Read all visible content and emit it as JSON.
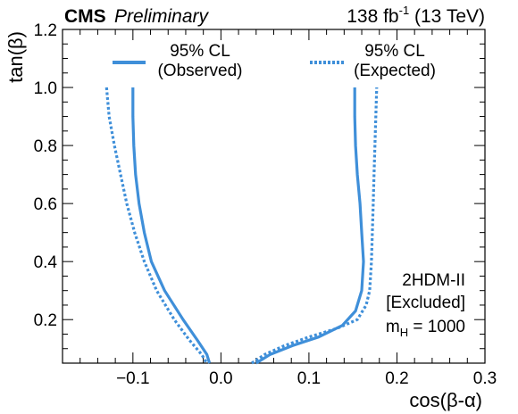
{
  "chart_data": {
    "type": "line",
    "header": {
      "experiment": "CMS",
      "status": "Preliminary",
      "lumi_value": "138 fb",
      "lumi_exp": "-1",
      "energy": " (13 TeV)"
    },
    "xlabel": "cos(β-α)",
    "ylabel": "tan(β)",
    "xlim": [
      -0.18,
      0.3
    ],
    "ylim": [
      0.05,
      1.2
    ],
    "xticks": [
      -0.1,
      0.0,
      0.1,
      0.2,
      0.3
    ],
    "xtick_labels": [
      "−0.1",
      "0.0",
      "0.1",
      "0.2",
      "0.3"
    ],
    "yticks": [
      0.2,
      0.4,
      0.6,
      0.8,
      1.0,
      1.2
    ],
    "ytick_labels": [
      "0.2",
      "0.4",
      "0.6",
      "0.8",
      "1.0",
      "1.2"
    ],
    "grid": false,
    "legend_position": "top",
    "line_color": "#3f8fd9",
    "legend": [
      {
        "line1": "95% CL",
        "line2": "(Observed)",
        "style": "solid"
      },
      {
        "line1": "95% CL",
        "line2": "(Expected)",
        "style": "dotted"
      }
    ],
    "annotation": {
      "line1": "2HDM-II",
      "line2": "[Excluded]",
      "line3_main": "m",
      "line3_sub": "H",
      "line3_rest": " = 1000"
    },
    "series": [
      {
        "name": "95% CL (Observed)",
        "style": "solid",
        "points": [
          [
            -0.1,
            1.0
          ],
          [
            -0.1,
            0.9
          ],
          [
            -0.099,
            0.8
          ],
          [
            -0.097,
            0.7
          ],
          [
            -0.093,
            0.6
          ],
          [
            -0.087,
            0.5
          ],
          [
            -0.079,
            0.4
          ],
          [
            -0.064,
            0.3
          ],
          [
            -0.043,
            0.2
          ],
          [
            -0.027,
            0.13
          ],
          [
            -0.016,
            0.08
          ],
          [
            -0.013,
            0.05
          ]
        ]
      },
      {
        "name": "95% CL (Observed)",
        "style": "solid",
        "points": [
          [
            0.04,
            0.05
          ],
          [
            0.056,
            0.08
          ],
          [
            0.081,
            0.11
          ],
          [
            0.111,
            0.14
          ],
          [
            0.138,
            0.18
          ],
          [
            0.153,
            0.23
          ],
          [
            0.16,
            0.3
          ],
          [
            0.162,
            0.4
          ],
          [
            0.16,
            0.5
          ],
          [
            0.158,
            0.6
          ],
          [
            0.155,
            0.7
          ],
          [
            0.153,
            0.8
          ],
          [
            0.152,
            0.9
          ],
          [
            0.152,
            1.0
          ]
        ]
      },
      {
        "name": "95% CL (Expected)",
        "style": "dotted",
        "points": [
          [
            -0.13,
            1.0
          ],
          [
            -0.127,
            0.9
          ],
          [
            -0.121,
            0.8
          ],
          [
            -0.114,
            0.7
          ],
          [
            -0.107,
            0.6
          ],
          [
            -0.098,
            0.5
          ],
          [
            -0.087,
            0.4
          ],
          [
            -0.073,
            0.3
          ],
          [
            -0.053,
            0.2
          ],
          [
            -0.036,
            0.13
          ],
          [
            -0.022,
            0.08
          ],
          [
            -0.016,
            0.05
          ]
        ]
      },
      {
        "name": "95% CL (Expected)",
        "style": "dotted",
        "points": [
          [
            0.035,
            0.05
          ],
          [
            0.05,
            0.08
          ],
          [
            0.072,
            0.11
          ],
          [
            0.1,
            0.14
          ],
          [
            0.132,
            0.17
          ],
          [
            0.155,
            0.2
          ],
          [
            0.165,
            0.25
          ],
          [
            0.169,
            0.3
          ],
          [
            0.171,
            0.4
          ],
          [
            0.172,
            0.5
          ],
          [
            0.173,
            0.6
          ],
          [
            0.174,
            0.7
          ],
          [
            0.175,
            0.8
          ],
          [
            0.176,
            0.9
          ],
          [
            0.177,
            1.0
          ]
        ]
      }
    ]
  }
}
